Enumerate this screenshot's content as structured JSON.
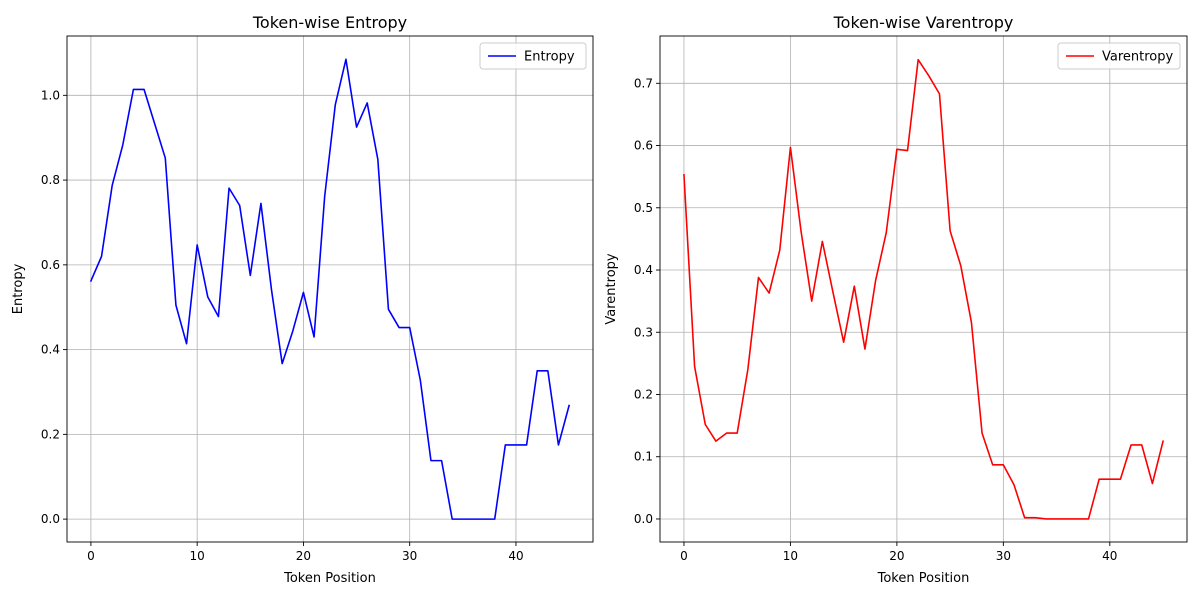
{
  "chart_data": [
    {
      "type": "line",
      "title": "Token-wise Entropy",
      "xlabel": "Token Position",
      "ylabel": "Entropy",
      "xlim": [
        -2.25,
        47.25
      ],
      "ylim": [
        -0.054,
        1.14
      ],
      "xticks": [
        0,
        10,
        20,
        30,
        40
      ],
      "xtick_labels": [
        "0",
        "10",
        "20",
        "30",
        "40"
      ],
      "yticks": [
        0.0,
        0.2,
        0.4,
        0.6,
        0.8,
        1.0
      ],
      "ytick_labels": [
        "0.0",
        "0.2",
        "0.4",
        "0.6",
        "0.8",
        "1.0"
      ],
      "grid": true,
      "legend_position": "top-right",
      "series": [
        {
          "name": "Entropy",
          "color": "#0000ff",
          "x": [
            0,
            1,
            2,
            3,
            4,
            5,
            6,
            7,
            8,
            9,
            10,
            11,
            12,
            13,
            14,
            15,
            16,
            17,
            18,
            19,
            20,
            21,
            22,
            23,
            24,
            25,
            26,
            27,
            28,
            29,
            30,
            31,
            32,
            33,
            34,
            35,
            36,
            37,
            38,
            39,
            40,
            41,
            42,
            43,
            44,
            45
          ],
          "y": [
            0.562,
            0.62,
            0.787,
            0.883,
            1.014,
            1.014,
            0.933,
            0.852,
            0.505,
            0.414,
            0.647,
            0.524,
            0.478,
            0.781,
            0.74,
            0.575,
            0.745,
            0.54,
            0.367,
            0.444,
            0.535,
            0.43,
            0.762,
            0.978,
            1.085,
            0.925,
            0.982,
            0.849,
            0.495,
            0.452,
            0.452,
            0.328,
            0.138,
            0.138,
            0.0,
            0.0,
            0.0,
            0.0,
            0.0,
            0.175,
            0.175,
            0.175,
            0.35,
            0.35,
            0.175,
            0.268
          ]
        }
      ]
    },
    {
      "type": "line",
      "title": "Token-wise Varentropy",
      "xlabel": "Token Position",
      "ylabel": "Varentropy",
      "xlim": [
        -2.25,
        47.25
      ],
      "ylim": [
        -0.037,
        0.776
      ],
      "xticks": [
        0,
        10,
        20,
        30,
        40
      ],
      "xtick_labels": [
        "0",
        "10",
        "20",
        "30",
        "40"
      ],
      "yticks": [
        0.0,
        0.1,
        0.2,
        0.3,
        0.4,
        0.5,
        0.6,
        0.7
      ],
      "ytick_labels": [
        "0.0",
        "0.1",
        "0.2",
        "0.3",
        "0.4",
        "0.5",
        "0.6",
        "0.7"
      ],
      "grid": true,
      "legend_position": "top-right",
      "series": [
        {
          "name": "Varentropy",
          "color": "#ff0000",
          "x": [
            0,
            1,
            2,
            3,
            4,
            5,
            6,
            7,
            8,
            9,
            10,
            11,
            12,
            13,
            14,
            15,
            16,
            17,
            18,
            19,
            20,
            21,
            22,
            23,
            24,
            25,
            26,
            27,
            28,
            29,
            30,
            31,
            32,
            33,
            34,
            35,
            36,
            37,
            38,
            39,
            40,
            41,
            42,
            43,
            44,
            45
          ],
          "y": [
            0.553,
            0.245,
            0.152,
            0.125,
            0.138,
            0.138,
            0.24,
            0.388,
            0.363,
            0.432,
            0.597,
            0.462,
            0.35,
            0.446,
            0.364,
            0.284,
            0.374,
            0.273,
            0.383,
            0.46,
            0.594,
            0.592,
            0.738,
            0.712,
            0.683,
            0.463,
            0.407,
            0.316,
            0.138,
            0.087,
            0.087,
            0.055,
            0.002,
            0.002,
            0.0,
            0.0,
            0.0,
            0.0,
            0.0,
            0.064,
            0.064,
            0.064,
            0.119,
            0.119,
            0.057,
            0.125
          ]
        }
      ]
    }
  ]
}
